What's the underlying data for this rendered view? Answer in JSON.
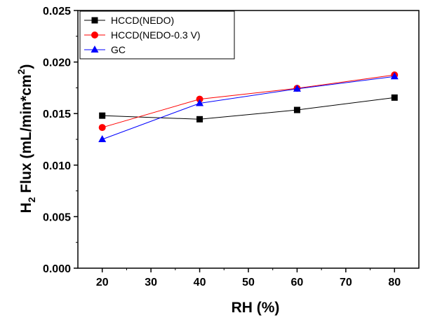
{
  "chart_data": {
    "type": "line",
    "xlabel": "RH (%)",
    "ylabel_parts": {
      "a": "H",
      "b": "2",
      "c": " Flux (mL/min*cm",
      "d": "2",
      "e": ")"
    },
    "x": [
      20,
      40,
      60,
      80
    ],
    "xlim": [
      15,
      85
    ],
    "ylim": [
      0.0,
      0.025
    ],
    "xticks": [
      20,
      30,
      40,
      50,
      60,
      70,
      80
    ],
    "yticks": [
      "0.000",
      "0.005",
      "0.010",
      "0.015",
      "0.020",
      "0.025"
    ],
    "grid": false,
    "legend_position": "top-left",
    "series": [
      {
        "name": "HCCD(NEDO)",
        "color": "#000000",
        "marker": "square",
        "values": [
          0.0148,
          0.01445,
          0.01535,
          0.01655
        ]
      },
      {
        "name": "HCCD(NEDO-0.3 V)",
        "color": "#ff0000",
        "marker": "circle",
        "values": [
          0.01365,
          0.0164,
          0.01745,
          0.01875
        ]
      },
      {
        "name": "GC",
        "color": "#0000ff",
        "marker": "triangle",
        "values": [
          0.0125,
          0.016,
          0.0174,
          0.0186
        ]
      }
    ]
  }
}
